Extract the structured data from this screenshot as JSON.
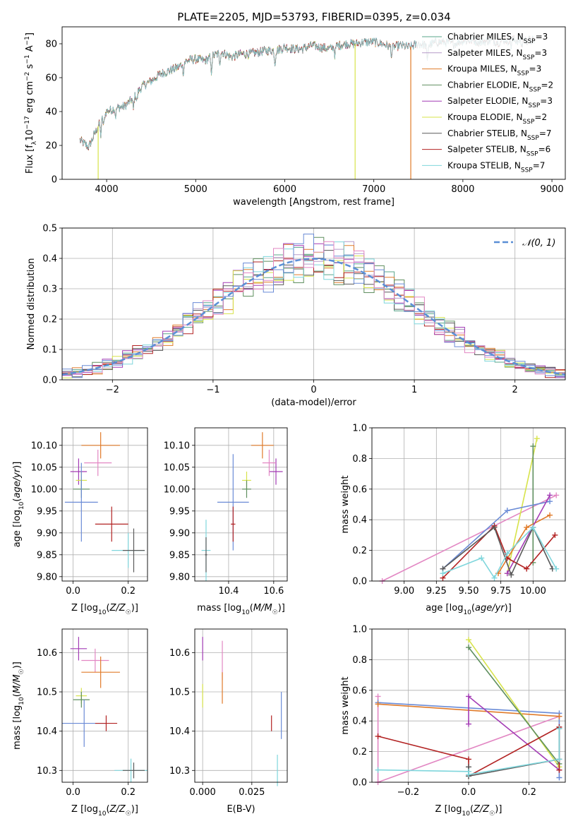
{
  "title": "PLATE=2205, MJD=53793, FIBERID=0395, z=0.034",
  "colors": {
    "Chabrier MILES": "#5aa58a",
    "Salpeter MILES": "#b59ac8",
    "Kroupa MILES": "#e07b2a",
    "Chabrier ELODIE": "#5f8f5f",
    "Salpeter ELODIE": "#a33cb5",
    "Kroupa ELODIE": "#d7e34a",
    "Chabrier STELIB": "#5a5a5a",
    "Salpeter STELIB": "#b22222",
    "Kroupa STELIB": "#7fd6dc",
    "blue": "#6a8bd6",
    "pink": "#e287c3",
    "gaussian": "#5b8fd6"
  },
  "chart_data": [
    {
      "id": "spectrum",
      "type": "line",
      "title": "PLATE=2205, MJD=53793, FIBERID=0395, z=0.034",
      "xlabel": "wavelength [Angstrom, rest frame]",
      "ylabel": "Flux [f_λ 10^-17 erg cm^-2 s^-1 A^-1]",
      "xlim": [
        3500,
        9150
      ],
      "ylim": [
        0,
        90
      ],
      "xticks": [
        4000,
        5000,
        6000,
        7000,
        8000,
        9000
      ],
      "yticks": [
        0,
        20,
        40,
        60,
        80
      ],
      "legend_position": "right",
      "legend": [
        {
          "label": "Chabrier MILES, N",
          "sub": "SSP",
          "suffix": "=3",
          "color_key": "Chabrier MILES"
        },
        {
          "label": "Salpeter MILES, N",
          "sub": "SSP",
          "suffix": "=3",
          "color_key": "Salpeter MILES"
        },
        {
          "label": "Kroupa MILES, N",
          "sub": "SSP",
          "suffix": "=3",
          "color_key": "Kroupa MILES"
        },
        {
          "label": "Chabrier ELODIE, N",
          "sub": "SSP",
          "suffix": "=2",
          "color_key": "Chabrier ELODIE"
        },
        {
          "label": "Salpeter ELODIE, N",
          "sub": "SSP",
          "suffix": "=3",
          "color_key": "Salpeter ELODIE"
        },
        {
          "label": "Kroupa ELODIE, N",
          "sub": "SSP",
          "suffix": "=2",
          "color_key": "Kroupa ELODIE"
        },
        {
          "label": "Chabrier STELIB, N",
          "sub": "SSP",
          "suffix": "=7",
          "color_key": "Chabrier STELIB"
        },
        {
          "label": "Salpeter STELIB, N",
          "sub": "SSP",
          "suffix": "=6",
          "color_key": "Salpeter STELIB"
        },
        {
          "label": "Kroupa STELIB, N",
          "sub": "SSP",
          "suffix": "=7",
          "color_key": "Kroupa STELIB"
        }
      ],
      "continuum": [
        [
          3700,
          23
        ],
        [
          3800,
          19
        ],
        [
          3900,
          31
        ],
        [
          4000,
          40
        ],
        [
          4100,
          42
        ],
        [
          4200,
          43
        ],
        [
          4300,
          48
        ],
        [
          4400,
          55
        ],
        [
          4500,
          58
        ],
        [
          4600,
          62
        ],
        [
          4700,
          64
        ],
        [
          4800,
          66
        ],
        [
          4900,
          70
        ],
        [
          5000,
          71
        ],
        [
          5100,
          70
        ],
        [
          5200,
          73
        ],
        [
          5300,
          75
        ],
        [
          5400,
          72
        ],
        [
          5500,
          74
        ],
        [
          5600,
          74
        ],
        [
          5700,
          75
        ],
        [
          5800,
          76
        ],
        [
          5900,
          76
        ],
        [
          6000,
          78
        ],
        [
          6100,
          77
        ],
        [
          6200,
          77
        ],
        [
          6300,
          79
        ],
        [
          6400,
          78
        ],
        [
          6500,
          77
        ],
        [
          6600,
          79
        ],
        [
          6700,
          80
        ],
        [
          6800,
          80
        ],
        [
          6900,
          81
        ],
        [
          7000,
          81
        ],
        [
          7100,
          80
        ],
        [
          7200,
          78
        ],
        [
          7300,
          79
        ],
        [
          7400,
          78
        ],
        [
          7500,
          80
        ],
        [
          7600,
          79
        ],
        [
          7700,
          81
        ],
        [
          7800,
          81
        ],
        [
          7900,
          80
        ],
        [
          8000,
          82
        ],
        [
          8100,
          82
        ],
        [
          8200,
          81
        ],
        [
          8300,
          82
        ],
        [
          8400,
          81
        ],
        [
          8500,
          83
        ],
        [
          8600,
          82
        ],
        [
          8700,
          82
        ],
        [
          8800,
          82
        ]
      ],
      "absorption_lines": [
        [
          3934,
          8
        ],
        [
          3968,
          6
        ],
        [
          4101,
          5
        ],
        [
          4300,
          7
        ],
        [
          4340,
          5
        ],
        [
          4861,
          6
        ],
        [
          5175,
          10
        ],
        [
          5270,
          6
        ],
        [
          5890,
          8
        ],
        [
          6563,
          5
        ],
        [
          7200,
          6
        ],
        [
          7600,
          10
        ],
        [
          8500,
          4
        ],
        [
          8542,
          4
        ],
        [
          8662,
          4
        ]
      ],
      "drop_lines": [
        {
          "x": 3905,
          "color_key": "Kroupa ELODIE"
        },
        {
          "x": 6790,
          "color_key": "Kroupa ELODIE"
        },
        {
          "x": 7415,
          "color_key": "Kroupa MILES"
        }
      ],
      "models_end": {
        "Chabrier MILES": 8800,
        "Salpeter MILES": 8800,
        "Kroupa MILES": 7400,
        "Chabrier ELODIE": 6800,
        "Salpeter ELODIE": 6800,
        "Kroupa ELODIE": 6800,
        "Chabrier STELIB": 8800,
        "Salpeter STELIB": 8800,
        "Kroupa STELIB": 8800
      }
    },
    {
      "id": "residuals",
      "type": "histogram",
      "xlabel": "(data-model)/error",
      "ylabel": "Normed distribution",
      "xlim": [
        -2.5,
        2.5
      ],
      "ylim": [
        0,
        0.5
      ],
      "xticks": [
        -2,
        -1,
        0,
        1,
        2
      ],
      "yticks": [
        0.0,
        0.1,
        0.2,
        0.3,
        0.4,
        0.5
      ],
      "grid": true,
      "bin_width": 0.1,
      "reference_curve": {
        "label": "𝒩(0, 1)",
        "color_key": "gaussian",
        "style": "dashed"
      },
      "legend_position": "top-right",
      "series_color_keys": [
        "Chabrier MILES",
        "Salpeter MILES",
        "Kroupa MILES",
        "Chabrier ELODIE",
        "Salpeter ELODIE",
        "Kroupa ELODIE",
        "Chabrier STELIB",
        "Salpeter STELIB",
        "Kroupa STELIB",
        "blue",
        "pink"
      ]
    },
    {
      "id": "age_vs_Z",
      "type": "errorbar",
      "xlabel": "Z [log10(Z/Z☉)]",
      "ylabel": "age [log10(age/yr)]",
      "xlim": [
        -0.04,
        0.27
      ],
      "ylim": [
        9.79,
        10.14
      ],
      "xticks": [
        0.0,
        0.2
      ],
      "yticks": [
        9.8,
        9.85,
        9.9,
        9.95,
        10.0,
        10.05,
        10.1
      ],
      "grid": true,
      "points": [
        {
          "color_key": "Kroupa MILES",
          "x": 0.1,
          "xerr": 0.07,
          "y": 10.1,
          "yerr": 0.03
        },
        {
          "color_key": "Salpeter ELODIE",
          "x": 0.02,
          "xerr": 0.03,
          "y": 10.04,
          "yerr": 0.03
        },
        {
          "color_key": "pink",
          "x": 0.09,
          "xerr": 0.05,
          "y": 10.06,
          "yerr": 0.03
        },
        {
          "color_key": "Kroupa ELODIE",
          "x": 0.03,
          "xerr": 0.02,
          "y": 10.02,
          "yerr": 0.02
        },
        {
          "color_key": "Chabrier ELODIE",
          "x": 0.03,
          "xerr": 0.03,
          "y": 10.0,
          "yerr": 0.02
        },
        {
          "color_key": "blue",
          "x": 0.03,
          "xerr": 0.06,
          "y": 9.97,
          "yerr": 0.09
        },
        {
          "color_key": "Salpeter STELIB",
          "x": 0.14,
          "xerr": 0.06,
          "y": 9.92,
          "yerr": 0.04
        },
        {
          "color_key": "Kroupa STELIB",
          "x": 0.2,
          "xerr": 0.06,
          "y": 9.86,
          "yerr": 0.04
        },
        {
          "color_key": "Chabrier STELIB",
          "x": 0.22,
          "xerr": 0.04,
          "y": 9.86,
          "yerr": 0.05
        }
      ]
    },
    {
      "id": "age_vs_mass",
      "type": "errorbar",
      "xlabel": "mass [log10(M/M☉)]",
      "ylabel": "",
      "xlim": [
        10.25,
        10.66
      ],
      "ylim": [
        9.79,
        10.14
      ],
      "xticks": [
        10.4,
        10.6
      ],
      "yticks": [
        9.8,
        9.85,
        9.9,
        9.95,
        10.0,
        10.05,
        10.1
      ],
      "grid": true,
      "points": [
        {
          "color_key": "Kroupa MILES",
          "x": 10.55,
          "xerr": 0.05,
          "y": 10.1,
          "yerr": 0.03
        },
        {
          "color_key": "Salpeter ELODIE",
          "x": 10.61,
          "xerr": 0.03,
          "y": 10.04,
          "yerr": 0.03
        },
        {
          "color_key": "pink",
          "x": 10.58,
          "xerr": 0.03,
          "y": 10.06,
          "yerr": 0.03
        },
        {
          "color_key": "Kroupa ELODIE",
          "x": 10.48,
          "xerr": 0.02,
          "y": 10.02,
          "yerr": 0.02
        },
        {
          "color_key": "Chabrier ELODIE",
          "x": 10.48,
          "xerr": 0.02,
          "y": 10.0,
          "yerr": 0.02
        },
        {
          "color_key": "blue",
          "x": 10.42,
          "xerr": 0.07,
          "y": 9.97,
          "yerr": 0.11
        },
        {
          "color_key": "Salpeter STELIB",
          "x": 10.42,
          "xerr": 0.01,
          "y": 9.92,
          "yerr": 0.04
        },
        {
          "color_key": "Kroupa STELIB",
          "x": 10.3,
          "xerr": 0.02,
          "y": 9.86,
          "yerr": 0.07
        },
        {
          "color_key": "Chabrier STELIB",
          "x": 10.3,
          "xerr": 0.005,
          "y": 9.85,
          "yerr": 0.04
        }
      ]
    },
    {
      "id": "weight_vs_age",
      "type": "line",
      "xlabel": "age [log10(age/yr)]",
      "ylabel": "mass weight",
      "xlim": [
        8.75,
        10.25
      ],
      "ylim": [
        0.0,
        1.0
      ],
      "xticks": [
        9.0,
        9.25,
        9.5,
        9.75,
        10.0
      ],
      "xtick_labels": [
        "9.00",
        "9.25",
        "9.50",
        "9.75",
        "10.00"
      ],
      "yticks": [
        0.0,
        0.2,
        0.4,
        0.6,
        0.8,
        1.0
      ],
      "grid": true,
      "series": [
        {
          "color_key": "pink",
          "x": [
            8.83,
            10.18
          ],
          "y": [
            0.0,
            0.56
          ]
        },
        {
          "color_key": "Kroupa ELODIE",
          "x": [
            9.8,
            10.03
          ],
          "y": [
            0.05,
            0.93
          ]
        },
        {
          "color_key": "Chabrier ELODIE",
          "x": [
            10.0,
            10.0
          ],
          "y": [
            0.12,
            0.88
          ]
        },
        {
          "color_key": "blue",
          "x": [
            9.3,
            9.8,
            10.13
          ],
          "y": [
            0.08,
            0.46,
            0.52
          ]
        },
        {
          "color_key": "Kroupa MILES",
          "x": [
            9.73,
            9.95,
            10.13
          ],
          "y": [
            0.05,
            0.35,
            0.43
          ]
        },
        {
          "color_key": "Salpeter ELODIE",
          "x": [
            9.8,
            10.13
          ],
          "y": [
            0.05,
            0.56
          ]
        },
        {
          "color_key": "Salpeter STELIB",
          "x": [
            9.3,
            9.7,
            9.8,
            9.95,
            10.17
          ],
          "y": [
            0.02,
            0.36,
            0.15,
            0.08,
            0.3
          ]
        },
        {
          "color_key": "Chabrier STELIB",
          "x": [
            9.3,
            9.7,
            9.83,
            10.0,
            10.15
          ],
          "y": [
            0.08,
            0.35,
            0.04,
            0.35,
            0.08
          ]
        },
        {
          "color_key": "Kroupa STELIB",
          "x": [
            9.3,
            9.6,
            9.7,
            9.8,
            10.0,
            10.18
          ],
          "y": [
            0.05,
            0.15,
            0.02,
            0.18,
            0.35,
            0.08
          ]
        }
      ]
    },
    {
      "id": "mass_vs_Z",
      "type": "errorbar",
      "xlabel": "Z [log10(Z/Z☉)]",
      "ylabel": "mass [log10(M/M☉)]",
      "xlim": [
        -0.04,
        0.27
      ],
      "ylim": [
        10.27,
        10.66
      ],
      "xticks": [
        0.0,
        0.2
      ],
      "yticks": [
        10.3,
        10.4,
        10.5,
        10.6
      ],
      "grid": true,
      "points": [
        {
          "color_key": "Salpeter ELODIE",
          "x": 0.02,
          "xerr": 0.03,
          "y": 10.61,
          "yerr": 0.03
        },
        {
          "color_key": "pink",
          "x": 0.08,
          "xerr": 0.05,
          "y": 10.58,
          "yerr": 0.03
        },
        {
          "color_key": "Kroupa MILES",
          "x": 0.1,
          "xerr": 0.07,
          "y": 10.55,
          "yerr": 0.04
        },
        {
          "color_key": "Kroupa ELODIE",
          "x": 0.03,
          "xerr": 0.02,
          "y": 10.49,
          "yerr": 0.02
        },
        {
          "color_key": "Chabrier ELODIE",
          "x": 0.03,
          "xerr": 0.03,
          "y": 10.48,
          "yerr": 0.02
        },
        {
          "color_key": "blue",
          "x": 0.04,
          "xerr": 0.08,
          "y": 10.42,
          "yerr": 0.06
        },
        {
          "color_key": "Salpeter STELIB",
          "x": 0.12,
          "xerr": 0.04,
          "y": 10.42,
          "yerr": 0.02
        },
        {
          "color_key": "Kroupa STELIB",
          "x": 0.21,
          "xerr": 0.06,
          "y": 10.3,
          "yerr": 0.03
        },
        {
          "color_key": "Chabrier STELIB",
          "x": 0.22,
          "xerr": 0.04,
          "y": 10.3,
          "yerr": 0.02
        }
      ]
    },
    {
      "id": "mass_vs_EBV",
      "type": "errorbar",
      "xlabel": "E(B-V)",
      "ylabel": "",
      "xlim": [
        -0.004,
        0.043
      ],
      "ylim": [
        10.27,
        10.66
      ],
      "xticks": [
        0.0,
        0.025
      ],
      "xtick_labels": [
        "0.000",
        "0.025"
      ],
      "yticks": [
        10.3,
        10.4,
        10.5,
        10.6
      ],
      "grid": true,
      "points": [
        {
          "color_key": "Salpeter ELODIE",
          "x": 0.0,
          "xerr": 0,
          "y": 10.61,
          "yerr": 0.03
        },
        {
          "color_key": "pink",
          "x": 0.01,
          "xerr": 0,
          "y": 10.58,
          "yerr": 0.05
        },
        {
          "color_key": "Kroupa MILES",
          "x": 0.01,
          "xerr": 0,
          "y": 10.51,
          "yerr": 0.04
        },
        {
          "color_key": "Kroupa ELODIE",
          "x": 0.0,
          "xerr": 0,
          "y": 10.49,
          "yerr": 0.03
        },
        {
          "color_key": "blue",
          "x": 0.04,
          "xerr": 0,
          "y": 10.44,
          "yerr": 0.06
        },
        {
          "color_key": "Salpeter STELIB",
          "x": 0.035,
          "xerr": 0,
          "y": 10.42,
          "yerr": 0.02
        },
        {
          "color_key": "Kroupa STELIB",
          "x": 0.038,
          "xerr": 0,
          "y": 10.3,
          "yerr": 0.04
        }
      ]
    },
    {
      "id": "weight_vs_Z",
      "type": "line",
      "xlabel": "Z [log10(Z/Z☉)]",
      "ylabel": "mass weight",
      "xlim": [
        -0.32,
        0.32
      ],
      "ylim": [
        0.0,
        1.0
      ],
      "xticks": [
        -0.2,
        0.0,
        0.2
      ],
      "xtick_labels": [
        "−0.2",
        "0.0",
        "0.2"
      ],
      "yticks": [
        0.0,
        0.2,
        0.4,
        0.6,
        0.8,
        1.0
      ],
      "grid": true,
      "series": [
        {
          "color_key": "pink",
          "x": [
            -0.3,
            -0.3,
            0.3
          ],
          "y": [
            0.56,
            0.0,
            0.43
          ]
        },
        {
          "color_key": "blue",
          "x": [
            -0.3,
            0.3,
            0.3
          ],
          "y": [
            0.52,
            0.45,
            0.03
          ]
        },
        {
          "color_key": "Kroupa MILES",
          "x": [
            -0.3,
            0.3
          ],
          "y": [
            0.51,
            0.43
          ]
        },
        {
          "color_key": "Kroupa ELODIE",
          "x": [
            0.0,
            0.3
          ],
          "y": [
            0.93,
            0.1
          ]
        },
        {
          "color_key": "Chabrier ELODIE",
          "x": [
            0.0,
            0.3
          ],
          "y": [
            0.88,
            0.12
          ]
        },
        {
          "color_key": "Salpeter ELODIE",
          "x": [
            0.0,
            0.0,
            0.3
          ],
          "y": [
            0.38,
            0.56,
            0.08
          ]
        },
        {
          "color_key": "Salpeter STELIB",
          "x": [
            -0.3,
            0.0,
            0.0,
            0.3,
            0.3
          ],
          "y": [
            0.3,
            0.15,
            0.04,
            0.36,
            0.08
          ]
        },
        {
          "color_key": "Chabrier STELIB",
          "x": [
            0.0,
            0.0,
            0.3,
            0.3
          ],
          "y": [
            0.1,
            0.04,
            0.15,
            0.35
          ]
        },
        {
          "color_key": "Kroupa STELIB",
          "x": [
            -0.3,
            0.0,
            0.0,
            0.3,
            0.3
          ],
          "y": [
            0.08,
            0.07,
            0.05,
            0.15,
            0.35
          ]
        }
      ]
    }
  ]
}
